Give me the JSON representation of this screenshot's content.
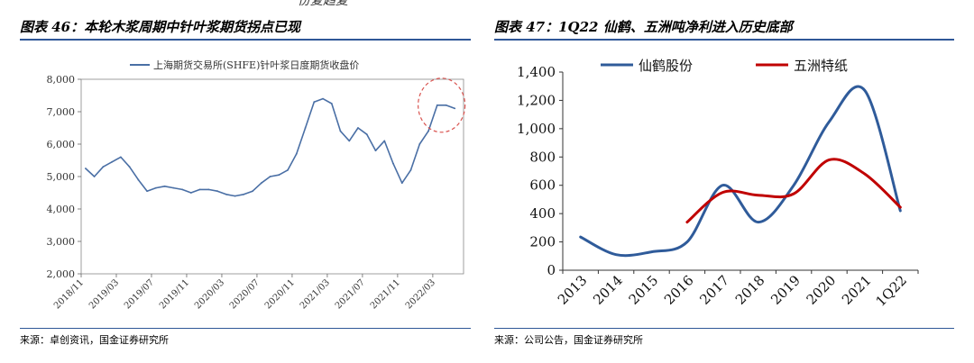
{
  "header_fragment": "份复趋复",
  "figures": [
    {
      "title": "图表 46：本轮木浆周期中针叶浆期货拐点已现",
      "source": "来源：卓创资讯，国金证券研究所",
      "chart_data": {
        "type": "line",
        "legend": [
          "上海期货交易所(SHFE)针叶浆日度期货收盘价"
        ],
        "legend_position": "top",
        "ylim": [
          2000,
          8000
        ],
        "yticks": [
          "2,000",
          "3,000",
          "4,000",
          "5,000",
          "6,000",
          "7,000",
          "8,000"
        ],
        "xticks": [
          "2018/11",
          "2019/03",
          "2019/07",
          "2019/11",
          "2020/03",
          "2020/07",
          "2020/11",
          "2021/03",
          "2021/07",
          "2021/11",
          "2022/03"
        ],
        "x_start": "2018/11",
        "series": [
          {
            "name": "上海期货交易所(SHFE)针叶浆日度期货收盘价",
            "color": "#4a6fa5",
            "x": [
              "2018/11",
              "2018/12",
              "2019/01",
              "2019/02",
              "2019/03",
              "2019/04",
              "2019/05",
              "2019/06",
              "2019/07",
              "2019/08",
              "2019/09",
              "2019/10",
              "2019/11",
              "2019/12",
              "2020/01",
              "2020/02",
              "2020/03",
              "2020/04",
              "2020/05",
              "2020/06",
              "2020/07",
              "2020/08",
              "2020/09",
              "2020/10",
              "2020/11",
              "2020/12",
              "2021/01",
              "2021/02",
              "2021/03",
              "2021/04",
              "2021/05",
              "2021/06",
              "2021/07",
              "2021/08",
              "2021/09",
              "2021/10",
              "2021/11",
              "2021/12",
              "2022/01",
              "2022/02",
              "2022/03",
              "2022/04",
              "2022/05"
            ],
            "values": [
              5250,
              5000,
              5300,
              5450,
              5600,
              5300,
              4900,
              4550,
              4650,
              4700,
              4650,
              4600,
              4500,
              4600,
              4600,
              4550,
              4450,
              4400,
              4450,
              4550,
              4800,
              5000,
              5050,
              5200,
              5700,
              6500,
              7300,
              7400,
              7250,
              6400,
              6100,
              6500,
              6300,
              5800,
              6100,
              5400,
              4800,
              5200,
              6000,
              6400,
              7200,
              7200,
              7100
            ]
          }
        ],
        "annotation": "red dashed circle highlighting 2022 peak"
      }
    },
    {
      "title": "图表 47：1Q22 仙鹤、五洲吨净利进入历史底部",
      "source": "来源：公司公告，国金证券研究所",
      "chart_data": {
        "type": "line",
        "legend": [
          "仙鹤股份",
          "五洲特纸"
        ],
        "legend_position": "top",
        "ylim": [
          0,
          1400
        ],
        "yticks": [
          "0",
          "200",
          "400",
          "600",
          "800",
          "1,000",
          "1,200",
          "1,400"
        ],
        "categories": [
          "2013",
          "2014",
          "2015",
          "2016",
          "2017",
          "2018",
          "2019",
          "2020",
          "2021",
          "1Q22"
        ],
        "series": [
          {
            "name": "仙鹤股份",
            "color": "#2f5b9a",
            "values": [
              235,
              110,
              130,
              200,
              600,
              340,
              600,
              1050,
              1270,
              420
            ]
          },
          {
            "name": "五洲特纸",
            "color": "#c00000",
            "values": [
              null,
              null,
              null,
              340,
              550,
              530,
              540,
              780,
              680,
              445
            ]
          }
        ]
      }
    }
  ]
}
